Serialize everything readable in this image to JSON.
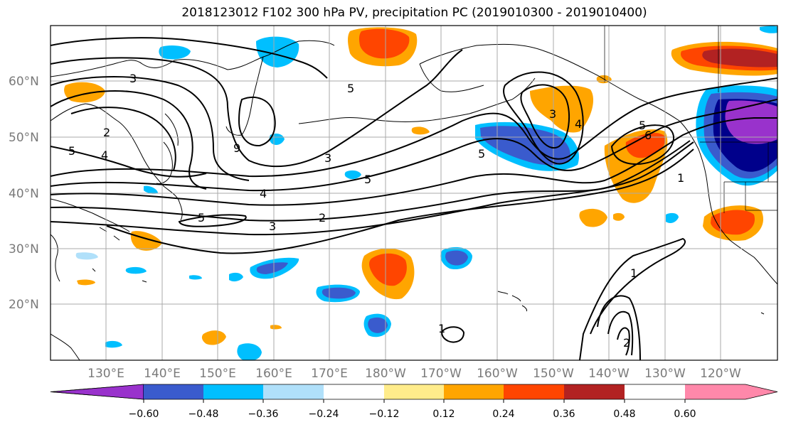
{
  "title": "2018123012 F102 300 hPa PV, precipitation PC (2019010300 - 2019010400)",
  "lat_labels": [
    "60°N",
    "50°N",
    "40°N",
    "30°N",
    "20°N"
  ],
  "lon_labels": [
    "130°E",
    "140°E",
    "150°E",
    "160°E",
    "170°E",
    "180°W",
    "170°W",
    "160°W",
    "150°W",
    "140°W",
    "130°W",
    "120°W"
  ],
  "colorbar": {
    "ticks": [
      "−0.60",
      "−0.48",
      "−0.36",
      "−0.24",
      "−0.12",
      "0.12",
      "0.24",
      "0.36",
      "0.48",
      "0.60"
    ],
    "colors": [
      "#9932CC",
      "#00008B",
      "#3A5BCD",
      "#00BFFF",
      "#B0E0FA",
      "#FFFFFF",
      "#FFEC8B",
      "#FFA500",
      "#FF4500",
      "#B22222",
      "#FF88AA"
    ]
  },
  "contour_labels": [
    "3",
    "5",
    "2",
    "4",
    "5",
    "9",
    "3",
    "5",
    "4",
    "5",
    "3",
    "2",
    "5",
    "3",
    "4",
    "5",
    "6",
    "1",
    "1",
    "1",
    "2"
  ]
}
